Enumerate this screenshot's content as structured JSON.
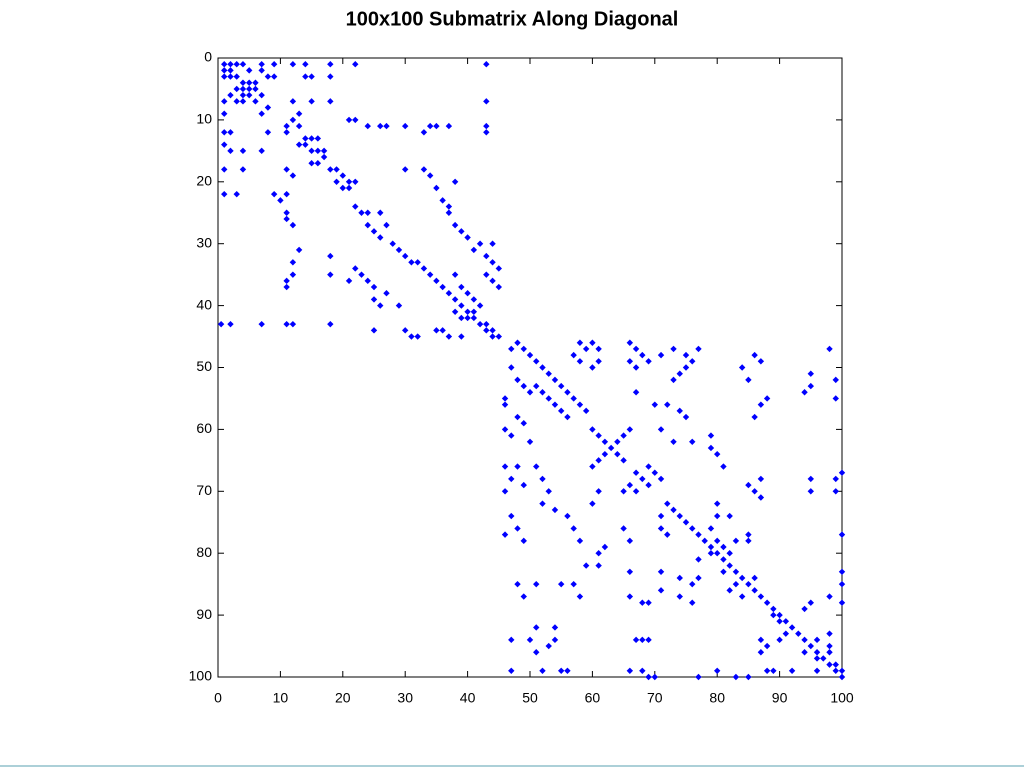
{
  "chart_data": {
    "type": "spy",
    "title": "100x100 Submatrix Along Diagonal",
    "color": "#0000ff",
    "xlim": [
      0,
      100
    ],
    "ylim": [
      0,
      100
    ],
    "y_reversed": true,
    "xticks": [
      0,
      10,
      20,
      30,
      40,
      50,
      60,
      70,
      80,
      90,
      100
    ],
    "yticks": [
      0,
      10,
      20,
      30,
      40,
      50,
      60,
      70,
      80,
      90,
      100
    ],
    "points": [
      [
        1,
        1
      ],
      [
        2,
        1
      ],
      [
        3,
        1
      ],
      [
        4,
        1
      ],
      [
        7,
        1
      ],
      [
        9,
        1
      ],
      [
        12,
        1
      ],
      [
        14,
        1
      ],
      [
        18,
        1
      ],
      [
        22,
        1
      ],
      [
        43,
        1
      ],
      [
        1,
        2
      ],
      [
        2,
        2
      ],
      [
        5,
        2
      ],
      [
        7,
        2
      ],
      [
        14,
        3
      ],
      [
        15,
        3
      ],
      [
        18,
        3
      ],
      [
        9,
        3
      ],
      [
        8,
        3
      ],
      [
        1,
        3
      ],
      [
        2,
        3
      ],
      [
        3,
        3
      ],
      [
        4,
        4
      ],
      [
        5,
        4
      ],
      [
        6,
        4
      ],
      [
        3,
        5
      ],
      [
        4,
        5
      ],
      [
        5,
        5
      ],
      [
        6,
        5
      ],
      [
        2,
        6
      ],
      [
        4,
        6
      ],
      [
        5,
        6
      ],
      [
        7,
        6
      ],
      [
        3,
        7
      ],
      [
        4,
        7
      ],
      [
        6,
        7
      ],
      [
        1,
        7
      ],
      [
        12,
        7
      ],
      [
        15,
        7
      ],
      [
        18,
        7
      ],
      [
        43,
        7
      ],
      [
        1,
        9
      ],
      [
        7,
        9
      ],
      [
        8,
        8
      ],
      [
        13,
        9
      ],
      [
        12,
        10
      ],
      [
        11,
        11
      ],
      [
        13,
        11
      ],
      [
        21,
        10
      ],
      [
        22,
        10
      ],
      [
        24,
        11
      ],
      [
        26,
        11
      ],
      [
        27,
        11
      ],
      [
        30,
        11
      ],
      [
        34,
        11
      ],
      [
        35,
        11
      ],
      [
        37,
        11
      ],
      [
        33,
        12
      ],
      [
        43,
        11
      ],
      [
        43,
        12
      ],
      [
        1,
        12
      ],
      [
        2,
        12
      ],
      [
        8,
        12
      ],
      [
        11,
        12
      ],
      [
        14,
        13
      ],
      [
        15,
        13
      ],
      [
        16,
        13
      ],
      [
        13,
        14
      ],
      [
        14,
        14
      ],
      [
        15,
        15
      ],
      [
        16,
        15
      ],
      [
        17,
        15
      ],
      [
        1,
        14
      ],
      [
        2,
        15
      ],
      [
        4,
        15
      ],
      [
        7,
        15
      ],
      [
        15,
        17
      ],
      [
        16,
        17
      ],
      [
        17,
        16
      ],
      [
        18,
        18
      ],
      [
        19,
        18
      ],
      [
        20,
        19
      ],
      [
        21,
        20
      ],
      [
        22,
        20
      ],
      [
        19,
        20
      ],
      [
        20,
        21
      ],
      [
        21,
        21
      ],
      [
        1,
        18
      ],
      [
        4,
        18
      ],
      [
        11,
        18
      ],
      [
        12,
        19
      ],
      [
        1,
        22
      ],
      [
        3,
        22
      ],
      [
        9,
        22
      ],
      [
        11,
        22
      ],
      [
        10,
        23
      ],
      [
        11,
        25
      ],
      [
        11,
        26
      ],
      [
        12,
        27
      ],
      [
        13,
        31
      ],
      [
        12,
        33
      ],
      [
        12,
        35
      ],
      [
        11,
        36
      ],
      [
        11,
        37
      ],
      [
        18,
        32
      ],
      [
        18,
        35
      ],
      [
        21,
        36
      ],
      [
        22,
        34
      ],
      [
        23,
        35
      ],
      [
        24,
        36
      ],
      [
        25,
        37
      ],
      [
        22,
        24
      ],
      [
        23,
        25
      ],
      [
        24,
        25
      ],
      [
        26,
        25
      ],
      [
        24,
        27
      ],
      [
        25,
        28
      ],
      [
        27,
        27
      ],
      [
        26,
        29
      ],
      [
        28,
        30
      ],
      [
        29,
        31
      ],
      [
        30,
        32
      ],
      [
        31,
        33
      ],
      [
        32,
        33
      ],
      [
        33,
        34
      ],
      [
        34,
        35
      ],
      [
        35,
        36
      ],
      [
        36,
        37
      ],
      [
        37,
        38
      ],
      [
        38,
        39
      ],
      [
        39,
        40
      ],
      [
        40,
        41
      ],
      [
        41,
        42
      ],
      [
        42,
        43
      ],
      [
        43,
        44
      ],
      [
        44,
        45
      ],
      [
        45,
        45
      ],
      [
        44,
        44
      ],
      [
        43,
        43
      ],
      [
        0.5,
        43
      ],
      [
        2,
        43
      ],
      [
        7,
        43
      ],
      [
        11,
        43
      ],
      [
        12,
        43
      ],
      [
        18,
        43
      ],
      [
        30,
        18
      ],
      [
        33,
        18
      ],
      [
        34,
        19
      ],
      [
        35,
        21
      ],
      [
        36,
        23
      ],
      [
        37,
        24
      ],
      [
        38,
        20
      ],
      [
        37,
        25
      ],
      [
        38,
        27
      ],
      [
        39,
        28
      ],
      [
        40,
        29
      ],
      [
        41,
        31
      ],
      [
        42,
        30
      ],
      [
        44,
        30
      ],
      [
        43,
        32
      ],
      [
        44,
        33
      ],
      [
        45,
        34
      ],
      [
        43,
        35
      ],
      [
        44,
        36
      ],
      [
        45,
        37
      ],
      [
        38,
        35
      ],
      [
        39,
        37
      ],
      [
        40,
        38
      ],
      [
        41,
        39
      ],
      [
        42,
        40
      ],
      [
        41,
        41
      ],
      [
        38,
        41
      ],
      [
        39,
        42
      ],
      [
        40,
        42
      ],
      [
        36,
        44
      ],
      [
        35,
        44
      ],
      [
        37,
        45
      ],
      [
        39,
        45
      ],
      [
        32,
        45
      ],
      [
        31,
        45
      ],
      [
        30,
        44
      ],
      [
        29,
        40
      ],
      [
        27,
        38
      ],
      [
        26,
        40
      ],
      [
        25,
        39
      ],
      [
        25,
        44
      ],
      [
        47,
        47
      ],
      [
        48,
        46
      ],
      [
        49,
        47
      ],
      [
        50,
        48
      ],
      [
        51,
        49
      ],
      [
        52,
        50
      ],
      [
        53,
        51
      ],
      [
        54,
        52
      ],
      [
        55,
        53
      ],
      [
        56,
        54
      ],
      [
        57,
        55
      ],
      [
        58,
        56
      ],
      [
        59,
        57
      ],
      [
        56,
        58
      ],
      [
        55,
        57
      ],
      [
        54,
        56
      ],
      [
        53,
        55
      ],
      [
        52,
        54
      ],
      [
        51,
        53
      ],
      [
        47,
        50
      ],
      [
        48,
        52
      ],
      [
        49,
        53
      ],
      [
        50,
        54
      ],
      [
        46,
        55
      ],
      [
        46,
        56
      ],
      [
        58,
        46
      ],
      [
        59,
        47
      ],
      [
        60,
        46
      ],
      [
        61,
        47
      ],
      [
        61,
        49
      ],
      [
        57,
        48
      ],
      [
        58,
        49
      ],
      [
        60,
        50
      ],
      [
        66,
        46
      ],
      [
        67,
        47
      ],
      [
        68,
        48
      ],
      [
        66,
        49
      ],
      [
        67,
        50
      ],
      [
        69,
        49
      ],
      [
        71,
        48
      ],
      [
        73,
        47
      ],
      [
        75,
        48
      ],
      [
        76,
        49
      ],
      [
        77,
        47
      ],
      [
        75,
        50
      ],
      [
        74,
        51
      ],
      [
        73,
        52
      ],
      [
        67,
        54
      ],
      [
        70,
        56
      ],
      [
        72,
        56
      ],
      [
        74,
        57
      ],
      [
        75,
        58
      ],
      [
        71,
        60
      ],
      [
        73,
        62
      ],
      [
        76,
        62
      ],
      [
        79,
        61
      ],
      [
        79,
        63
      ],
      [
        80,
        64
      ],
      [
        81,
        66
      ],
      [
        85,
        52
      ],
      [
        87,
        49
      ],
      [
        87,
        56
      ],
      [
        88,
        55
      ],
      [
        94,
        54
      ],
      [
        95,
        51
      ],
      [
        95,
        53
      ],
      [
        98,
        47
      ],
      [
        99,
        52
      ],
      [
        99,
        55
      ],
      [
        84,
        50
      ],
      [
        86,
        48
      ],
      [
        86,
        58
      ],
      [
        46,
        60
      ],
      [
        47,
        61
      ],
      [
        48,
        58
      ],
      [
        49,
        59
      ],
      [
        50,
        62
      ],
      [
        60,
        60
      ],
      [
        61,
        61
      ],
      [
        62,
        62
      ],
      [
        63,
        63
      ],
      [
        64,
        64
      ],
      [
        65,
        65
      ],
      [
        62,
        64
      ],
      [
        61,
        65
      ],
      [
        60,
        66
      ],
      [
        64,
        62
      ],
      [
        65,
        61
      ],
      [
        66,
        60
      ],
      [
        67,
        67
      ],
      [
        68,
        68
      ],
      [
        69,
        69
      ],
      [
        66,
        69
      ],
      [
        67,
        70
      ],
      [
        69,
        66
      ],
      [
        70,
        67
      ],
      [
        71,
        68
      ],
      [
        72,
        72
      ],
      [
        73,
        73
      ],
      [
        74,
        74
      ],
      [
        75,
        75
      ],
      [
        76,
        76
      ],
      [
        77,
        77
      ],
      [
        78,
        78
      ],
      [
        79,
        79
      ],
      [
        80,
        80
      ],
      [
        81,
        81
      ],
      [
        82,
        82
      ],
      [
        83,
        83
      ],
      [
        84,
        84
      ],
      [
        85,
        85
      ],
      [
        86,
        86
      ],
      [
        87,
        87
      ],
      [
        88,
        88
      ],
      [
        89,
        89
      ],
      [
        90,
        90
      ],
      [
        91,
        91
      ],
      [
        92,
        92
      ],
      [
        93,
        93
      ],
      [
        94,
        94
      ],
      [
        95,
        95
      ],
      [
        96,
        96
      ],
      [
        97,
        97
      ],
      [
        98,
        98
      ],
      [
        99,
        99
      ],
      [
        100,
        100
      ],
      [
        46,
        66
      ],
      [
        47,
        68
      ],
      [
        46,
        70
      ],
      [
        48,
        66
      ],
      [
        49,
        69
      ],
      [
        51,
        66
      ],
      [
        52,
        68
      ],
      [
        53,
        70
      ],
      [
        47,
        74
      ],
      [
        48,
        76
      ],
      [
        46,
        77
      ],
      [
        49,
        78
      ],
      [
        52,
        72
      ],
      [
        54,
        73
      ],
      [
        56,
        74
      ],
      [
        57,
        76
      ],
      [
        58,
        78
      ],
      [
        60,
        72
      ],
      [
        61,
        70
      ],
      [
        62,
        79
      ],
      [
        61,
        80
      ],
      [
        59,
        82
      ],
      [
        61,
        82
      ],
      [
        65,
        70
      ],
      [
        65,
        76
      ],
      [
        66,
        78
      ],
      [
        66,
        83
      ],
      [
        66,
        87
      ],
      [
        68,
        88
      ],
      [
        69,
        88
      ],
      [
        67,
        94
      ],
      [
        68,
        94
      ],
      [
        69,
        94
      ],
      [
        66,
        99
      ],
      [
        68,
        99
      ],
      [
        69,
        100
      ],
      [
        70,
        100
      ],
      [
        77,
        100
      ],
      [
        80,
        99
      ],
      [
        83,
        100
      ],
      [
        85,
        100
      ],
      [
        88,
        99
      ],
      [
        89,
        99
      ],
      [
        92,
        99
      ],
      [
        96,
        99
      ],
      [
        100,
        99
      ],
      [
        47,
        94
      ],
      [
        50,
        94
      ],
      [
        48,
        85
      ],
      [
        49,
        87
      ],
      [
        51,
        85
      ],
      [
        55,
        85
      ],
      [
        57,
        85
      ],
      [
        58,
        87
      ],
      [
        51,
        92
      ],
      [
        51,
        96
      ],
      [
        54,
        92
      ],
      [
        54,
        94
      ],
      [
        53,
        95
      ],
      [
        52,
        99
      ],
      [
        55,
        99
      ],
      [
        56,
        99
      ],
      [
        47,
        99
      ],
      [
        71,
        83
      ],
      [
        71,
        86
      ],
      [
        74,
        84
      ],
      [
        76,
        85
      ],
      [
        74,
        87
      ],
      [
        76,
        88
      ],
      [
        77,
        81
      ],
      [
        77,
        84
      ],
      [
        71,
        74
      ],
      [
        71,
        76
      ],
      [
        72,
        77
      ],
      [
        80,
        72
      ],
      [
        80,
        74
      ],
      [
        79,
        76
      ],
      [
        82,
        74
      ],
      [
        83,
        78
      ],
      [
        85,
        77
      ],
      [
        85,
        78
      ],
      [
        87,
        71
      ],
      [
        87,
        68
      ],
      [
        85,
        69
      ],
      [
        86,
        70
      ],
      [
        95,
        68
      ],
      [
        95,
        70
      ],
      [
        99,
        68
      ],
      [
        100,
        67
      ],
      [
        99,
        70
      ],
      [
        100,
        77
      ],
      [
        100,
        83
      ],
      [
        100,
        85
      ],
      [
        98,
        87
      ],
      [
        100,
        88
      ],
      [
        95,
        88
      ],
      [
        94,
        89
      ],
      [
        89,
        90
      ],
      [
        90,
        91
      ],
      [
        91,
        93
      ],
      [
        90,
        94
      ],
      [
        88,
        95
      ],
      [
        94,
        96
      ],
      [
        96,
        94
      ],
      [
        98,
        93
      ],
      [
        98,
        95
      ],
      [
        96,
        97
      ],
      [
        98,
        96
      ],
      [
        99,
        98
      ],
      [
        87,
        94
      ],
      [
        87,
        96
      ],
      [
        82,
        86
      ],
      [
        83,
        85
      ],
      [
        84,
        87
      ],
      [
        86,
        84
      ],
      [
        81,
        83
      ],
      [
        82,
        80
      ],
      [
        80,
        78
      ],
      [
        79,
        80
      ],
      [
        81,
        79
      ]
    ]
  }
}
